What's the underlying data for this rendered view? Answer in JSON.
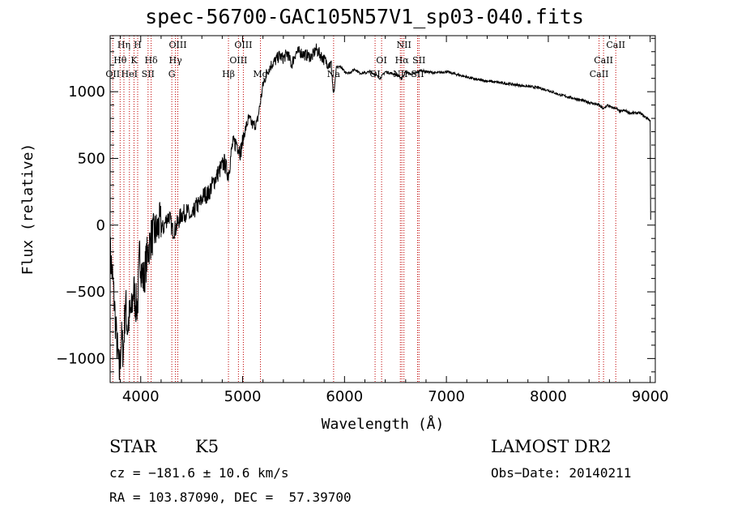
{
  "chart_data": {
    "type": "line",
    "title": "spec-56700-GAC105N57V1_sp03-040.fits",
    "xlabel": "Wavelength (Å)",
    "ylabel": "Flux (relative)",
    "xlim": [
      3700,
      9050
    ],
    "ylim": [
      -1180,
      1420
    ],
    "x_ticks": [
      4000,
      5000,
      6000,
      7000,
      8000,
      9000
    ],
    "y_ticks": [
      -1000,
      -500,
      0,
      500,
      1000
    ],
    "grid": false,
    "series": [
      {
        "x": [
          3700,
          3730,
          3760,
          3790,
          3810,
          3830,
          3850,
          3870,
          3890,
          3910,
          3930,
          3950,
          3970,
          3990,
          4010,
          4030,
          4050,
          4080,
          4100,
          4130,
          4160,
          4190,
          4220,
          4250,
          4280,
          4310,
          4340,
          4370,
          4400,
          4430,
          4460,
          4500,
          4540,
          4580,
          4620,
          4660,
          4700,
          4740,
          4780,
          4820,
          4860,
          4900,
          4940,
          4980,
          5020,
          5060,
          5100,
          5140,
          5170,
          5200,
          5240,
          5280,
          5320,
          5360,
          5400,
          5440,
          5480,
          5520,
          5560,
          5600,
          5640,
          5680,
          5720,
          5760,
          5800,
          5840,
          5870,
          5893,
          5920,
          5960,
          6000,
          6050,
          6100,
          6150,
          6200,
          6250,
          6300,
          6350,
          6400,
          6450,
          6500,
          6563,
          6600,
          6650,
          6700,
          6750,
          6800,
          6900,
          7000,
          7100,
          7200,
          7300,
          7400,
          7500,
          7600,
          7700,
          7800,
          7900,
          8000,
          8100,
          8200,
          8300,
          8400,
          8498,
          8542,
          8580,
          8620,
          8662,
          8700,
          8750,
          8800,
          8850,
          8900,
          8950,
          8980,
          9000,
          9005
        ],
        "y": [
          -200,
          -450,
          -820,
          -1120,
          -850,
          -950,
          -560,
          -780,
          -680,
          -650,
          -470,
          -590,
          -600,
          -200,
          -350,
          -420,
          -290,
          -160,
          -100,
          -60,
          -40,
          20,
          -30,
          40,
          70,
          -40,
          -30,
          30,
          80,
          90,
          100,
          40,
          140,
          160,
          230,
          230,
          300,
          360,
          420,
          470,
          380,
          600,
          620,
          550,
          700,
          800,
          750,
          760,
          900,
          1050,
          1150,
          1200,
          1230,
          1270,
          1250,
          1290,
          1200,
          1290,
          1300,
          1280,
          1270,
          1260,
          1320,
          1280,
          1240,
          1210,
          1200,
          960,
          1180,
          1190,
          1150,
          1140,
          1170,
          1140,
          1140,
          1150,
          1130,
          1100,
          1150,
          1140,
          1130,
          1100,
          1150,
          1130,
          1140,
          1160,
          1150,
          1140,
          1150,
          1130,
          1110,
          1090,
          1080,
          1070,
          1060,
          1050,
          1040,
          1030,
          1010,
          980,
          960,
          940,
          920,
          900,
          870,
          900,
          880,
          880,
          850,
          860,
          840,
          840,
          840,
          810,
          800,
          780,
          40
        ]
      }
    ],
    "lines": [
      {
        "w": 3726,
        "labels": [
          "OII"
        ]
      },
      {
        "w": 3798,
        "labels": [
          "Hθ"
        ]
      },
      {
        "w": 3835,
        "labels": [
          "Hη"
        ]
      },
      {
        "w": 3889,
        "labels": [
          "HeI"
        ]
      },
      {
        "w": 3934,
        "labels": [
          "K"
        ]
      },
      {
        "w": 3970,
        "labels": [
          "H"
        ]
      },
      {
        "w": 4072,
        "labels": [
          "SII"
        ]
      },
      {
        "w": 4102,
        "labels": [
          "Hδ"
        ]
      },
      {
        "w": 4305,
        "labels": [
          "G"
        ]
      },
      {
        "w": 4341,
        "labels": [
          "Hγ"
        ]
      },
      {
        "w": 4364,
        "labels": [
          "OIII"
        ]
      },
      {
        "w": 4861,
        "labels": [
          "Hβ"
        ]
      },
      {
        "w": 4959,
        "labels": [
          "OIII"
        ]
      },
      {
        "w": 5007,
        "labels": [
          "OIII"
        ]
      },
      {
        "w": 5175,
        "labels": [
          "Mg"
        ]
      },
      {
        "w": 5893,
        "labels": [
          "Na"
        ]
      },
      {
        "w": 6300,
        "labels": [
          "OI"
        ]
      },
      {
        "w": 6364,
        "labels": [
          "OI"
        ]
      },
      {
        "w": 6548,
        "labels": [
          "NII"
        ]
      },
      {
        "w": 6563,
        "labels": [
          "Hα"
        ]
      },
      {
        "w": 6583,
        "labels": [
          "NII"
        ]
      },
      {
        "w": 6717,
        "labels": [
          "SII"
        ]
      },
      {
        "w": 6731,
        "labels": [
          "SII"
        ]
      },
      {
        "w": 8498,
        "labels": [
          "CaII"
        ]
      },
      {
        "w": 8542,
        "labels": [
          "CaII"
        ]
      },
      {
        "w": 8662,
        "labels": [
          "CaII"
        ]
      }
    ]
  },
  "info": {
    "class": "STAR",
    "subclass": "K5",
    "survey": "LAMOST DR2",
    "cz": "cz = −181.6 ± 10.6 km/s",
    "obs_date": "Obs−Date: 20140211",
    "coords": "RA = 103.87090, DEC =  57.39700"
  },
  "colors": {
    "spectrum": "#000000",
    "line_marker": "#c00000",
    "axis": "#000000",
    "background": "#ffffff"
  }
}
